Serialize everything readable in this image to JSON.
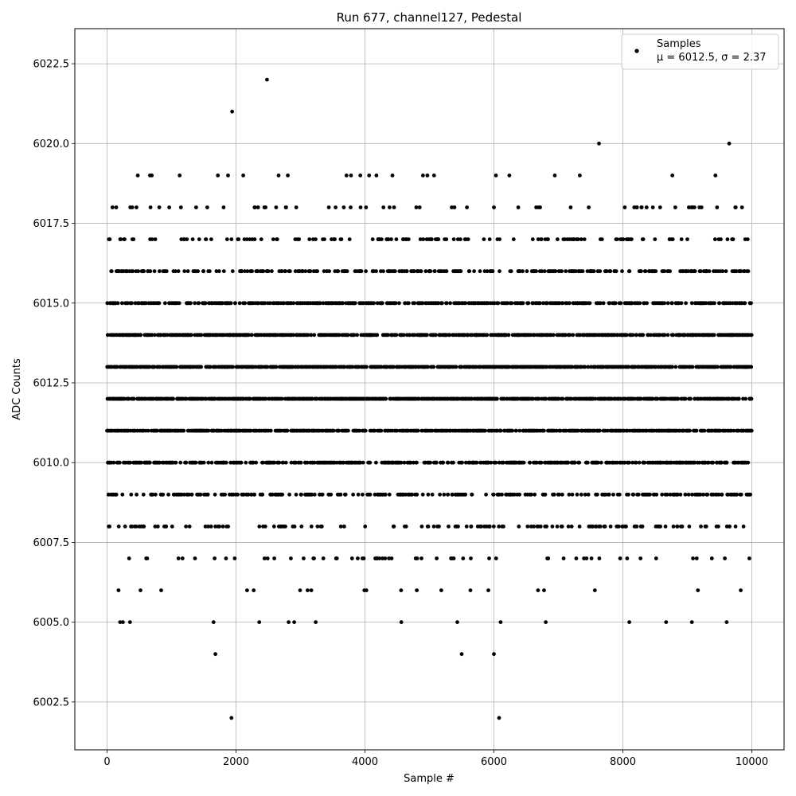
{
  "chart_data": {
    "type": "scatter",
    "title": "Run 677, channel127, Pedestal",
    "xlabel": "Sample #",
    "ylabel": "ADC Counts",
    "xlim": [
      -500,
      10500
    ],
    "ylim": [
      6001.0,
      6023.6
    ],
    "x_ticks": [
      0,
      2000,
      4000,
      6000,
      8000,
      10000
    ],
    "x_tick_labels": [
      "0",
      "2000",
      "4000",
      "6000",
      "8000",
      "10000"
    ],
    "y_ticks": [
      6002.5,
      6005.0,
      6007.5,
      6010.0,
      6012.5,
      6015.0,
      6017.5,
      6020.0,
      6022.5
    ],
    "y_tick_labels": [
      "6002.5",
      "6005.0",
      "6007.5",
      "6010.0",
      "6012.5",
      "6015.0",
      "6017.5",
      "6020.0",
      "6022.5"
    ],
    "grid": true,
    "marker_color": "#000000",
    "legend": {
      "placement": "top-right",
      "marker": "filled circle",
      "line1": "Samples",
      "line2": "μ = 6012.5, σ = 2.37"
    },
    "series": [
      {
        "name": "Samples",
        "mean": 6012.5,
        "sigma": 2.37,
        "n_samples": 10000,
        "outliers": [
          {
            "x": 1940,
            "y": 6021
          },
          {
            "x": 2480,
            "y": 6022
          },
          {
            "x": 7630,
            "y": 6020
          },
          {
            "x": 9650,
            "y": 6020
          },
          {
            "x": 1930,
            "y": 6002
          },
          {
            "x": 6080,
            "y": 6002
          },
          {
            "x": 1680,
            "y": 6004
          },
          {
            "x": 5500,
            "y": 6004
          },
          {
            "x": 6000,
            "y": 6004
          }
        ]
      }
    ]
  }
}
